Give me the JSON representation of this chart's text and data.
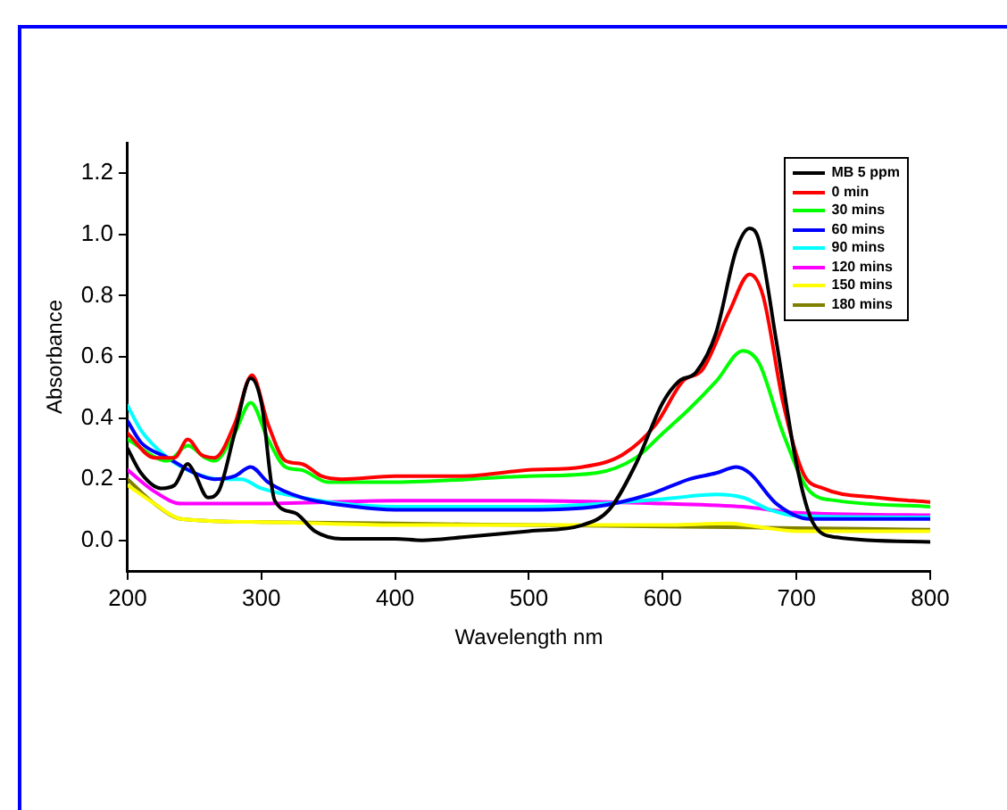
{
  "chart_data": {
    "type": "line",
    "xlabel": "Wavelength nm",
    "ylabel": "Absorbance",
    "xlim": [
      200,
      800
    ],
    "ylim": [
      -0.1,
      1.3
    ],
    "xticks": [
      200,
      300,
      400,
      500,
      600,
      700,
      800
    ],
    "yticks": [
      {
        "value": 0,
        "label": "0.0"
      },
      0.2,
      0.4,
      0.6,
      0.8,
      {
        "value": 1,
        "label": "1.0"
      },
      1.2
    ],
    "grid": false,
    "legend": "top right",
    "marker": "none",
    "line_style": "solid",
    "series": [
      {
        "name": "MB 5 ppm",
        "color": "#000000",
        "x": [
          200,
          210,
          225,
          235,
          245,
          250,
          260,
          268,
          280,
          292,
          300,
          310,
          325,
          340,
          360,
          400,
          420,
          450,
          500,
          540,
          560,
          580,
          600,
          612,
          625,
          640,
          655,
          665,
          672,
          685,
          700,
          712,
          730,
          800
        ],
        "values": [
          0.3,
          0.22,
          0.17,
          0.18,
          0.25,
          0.22,
          0.14,
          0.16,
          0.35,
          0.53,
          0.45,
          0.13,
          0.09,
          0.03,
          0.005,
          0.005,
          0,
          0.01,
          0.03,
          0.05,
          0.1,
          0.25,
          0.45,
          0.52,
          0.55,
          0.68,
          0.95,
          1.02,
          0.98,
          0.65,
          0.25,
          0.06,
          0.01,
          -0.005
        ]
      },
      {
        "name": "0 min",
        "color": "#ff0000",
        "x": [
          200,
          220,
          235,
          245,
          255,
          265,
          280,
          293,
          305,
          318,
          330,
          345,
          360,
          400,
          450,
          500,
          540,
          570,
          595,
          615,
          630,
          650,
          665,
          675,
          690,
          705,
          720,
          760,
          800
        ],
        "values": [
          0.35,
          0.27,
          0.27,
          0.33,
          0.28,
          0.27,
          0.38,
          0.54,
          0.38,
          0.26,
          0.25,
          0.21,
          0.2,
          0.21,
          0.21,
          0.23,
          0.24,
          0.28,
          0.38,
          0.52,
          0.56,
          0.75,
          0.87,
          0.8,
          0.45,
          0.22,
          0.17,
          0.14,
          0.125
        ]
      },
      {
        "name": "30 mins",
        "color": "#00ff00",
        "x": [
          200,
          230,
          245,
          258,
          265,
          280,
          292,
          305,
          318,
          330,
          350,
          400,
          500,
          550,
          580,
          600,
          620,
          640,
          660,
          672,
          690,
          710,
          730,
          800
        ],
        "values": [
          0.33,
          0.26,
          0.31,
          0.27,
          0.26,
          0.35,
          0.45,
          0.33,
          0.24,
          0.23,
          0.19,
          0.19,
          0.21,
          0.22,
          0.27,
          0.35,
          0.43,
          0.52,
          0.62,
          0.58,
          0.35,
          0.16,
          0.13,
          0.11
        ]
      },
      {
        "name": "60 mins",
        "color": "#0000ff",
        "x": [
          200,
          210,
          230,
          250,
          265,
          280,
          292,
          305,
          330,
          370,
          400,
          500,
          550,
          590,
          620,
          640,
          655,
          665,
          685,
          710,
          800
        ],
        "values": [
          0.39,
          0.32,
          0.27,
          0.22,
          0.2,
          0.21,
          0.24,
          0.19,
          0.14,
          0.11,
          0.1,
          0.1,
          0.11,
          0.15,
          0.2,
          0.22,
          0.24,
          0.22,
          0.12,
          0.07,
          0.07
        ]
      },
      {
        "name": "90 mins",
        "color": "#00ffff",
        "x": [
          200,
          210,
          230,
          250,
          270,
          285,
          300,
          330,
          360,
          400,
          500,
          600,
          640,
          660,
          680,
          700,
          800
        ],
        "values": [
          0.44,
          0.36,
          0.27,
          0.22,
          0.2,
          0.2,
          0.17,
          0.14,
          0.12,
          0.11,
          0.11,
          0.135,
          0.15,
          0.14,
          0.1,
          0.08,
          0.075
        ]
      },
      {
        "name": "120 mins",
        "color": "#ff00ff",
        "x": [
          200,
          220,
          240,
          300,
          400,
          500,
          600,
          660,
          700,
          800
        ],
        "values": [
          0.23,
          0.16,
          0.12,
          0.12,
          0.13,
          0.13,
          0.12,
          0.11,
          0.09,
          0.082
        ]
      },
      {
        "name": "150 mins",
        "color": "#ffff00",
        "x": [
          200,
          220,
          240,
          300,
          400,
          500,
          600,
          650,
          670,
          700,
          800
        ],
        "values": [
          0.18,
          0.12,
          0.07,
          0.06,
          0.05,
          0.05,
          0.05,
          0.055,
          0.045,
          0.03,
          0.03
        ]
      },
      {
        "name": "180 mins",
        "color": "#808000",
        "x": [
          200,
          220,
          240,
          300,
          400,
          500,
          600,
          700,
          800
        ],
        "values": [
          0.2,
          0.12,
          0.07,
          0.06,
          0.055,
          0.05,
          0.045,
          0.04,
          0.035
        ]
      }
    ]
  }
}
